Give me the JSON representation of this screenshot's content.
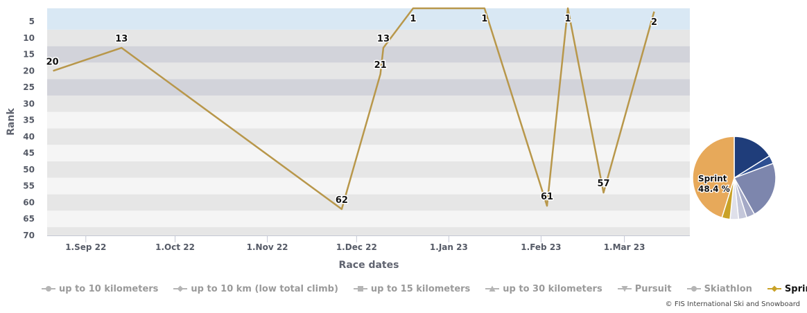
{
  "chart_data": {
    "type": "line",
    "title": "",
    "xlabel": "Race dates",
    "ylabel": "Rank",
    "y_reversed": true,
    "ylim": [
      70,
      1
    ],
    "yticks": [
      5,
      10,
      15,
      20,
      25,
      30,
      35,
      40,
      45,
      50,
      55,
      60,
      65,
      70
    ],
    "xlim": [
      "2022-08-19",
      "2023-03-23"
    ],
    "xticks": [
      {
        "date": "2022-09-01",
        "label": "1.Sep 22"
      },
      {
        "date": "2022-10-01",
        "label": "1.Oct 22"
      },
      {
        "date": "2022-11-01",
        "label": "1.Nov 22"
      },
      {
        "date": "2022-12-01",
        "label": "1.Dec 22"
      },
      {
        "date": "2023-01-01",
        "label": "1.Jan 23"
      },
      {
        "date": "2023-02-01",
        "label": "1.Feb 23"
      },
      {
        "date": "2023-03-01",
        "label": "1.Mar 23"
      }
    ],
    "grid": true,
    "band_colors": [
      "#d9e8f4",
      "#e6e6e6",
      "#d2d3da",
      "#e6e6e6",
      "#d2d3da",
      "#e6e6e6",
      "#f5f5f5",
      "#e6e6e6",
      "#f5f5f5",
      "#e6e6e6",
      "#f5f5f5",
      "#e6e6e6",
      "#f5f5f5",
      "#e6e6e6",
      "#f5f5f5"
    ],
    "series": [
      {
        "name": "Sprint",
        "color": "#b8974a",
        "points": [
          {
            "date": "2022-08-21",
            "rank": 20
          },
          {
            "date": "2022-09-13",
            "rank": 13
          },
          {
            "date": "2022-11-26",
            "rank": 62
          },
          {
            "date": "2022-12-09",
            "rank": 21
          },
          {
            "date": "2022-12-10",
            "rank": 13
          },
          {
            "date": "2022-12-20",
            "rank": 1
          },
          {
            "date": "2023-01-13",
            "rank": 1
          },
          {
            "date": "2023-02-03",
            "rank": 61
          },
          {
            "date": "2023-02-10",
            "rank": 1
          },
          {
            "date": "2023-02-22",
            "rank": 57
          },
          {
            "date": "2023-03-11",
            "rank": 2
          }
        ]
      }
    ],
    "pie": {
      "label": "Sprint",
      "percent_text": "48.4 %",
      "slices": [
        {
          "category": "up to 10 kilometers",
          "percent": 16.1,
          "color": "#1f3d7a"
        },
        {
          "category": "up to 10 km (low total climb)",
          "percent": 3.2,
          "color": "#2e4f92"
        },
        {
          "category": "up to 15 kilometers",
          "percent": 22.6,
          "color": "#7d86ad"
        },
        {
          "category": "up to 30 kilometers",
          "percent": 3.2,
          "color": "#a4a9c6"
        },
        {
          "category": "Pursuit",
          "percent": 3.2,
          "color": "#c4c7da"
        },
        {
          "category": "Skiathlon",
          "percent": 3.3,
          "color": "#dfe0ea"
        },
        {
          "category": "Sprint (highlight)",
          "percent": 3.2,
          "color": "#c9a227"
        },
        {
          "category": "Sprint",
          "percent": 45.2,
          "color": "#e7a95a"
        }
      ]
    }
  },
  "legend": [
    {
      "label": "up to 10 kilometers",
      "marker": "circle",
      "active": false
    },
    {
      "label": "up to 10 km (low total climb)",
      "marker": "diamond",
      "active": false
    },
    {
      "label": "up to 15 kilometers",
      "marker": "square",
      "active": false
    },
    {
      "label": "up to 30 kilometers",
      "marker": "triangle",
      "active": false
    },
    {
      "label": "Pursuit",
      "marker": "triangle-down",
      "active": false
    },
    {
      "label": "Skiathlon",
      "marker": "circle",
      "active": false
    },
    {
      "label": "Sprint",
      "marker": "diamond",
      "active": true
    }
  ],
  "credit": "© FIS International Ski and Snowboard"
}
